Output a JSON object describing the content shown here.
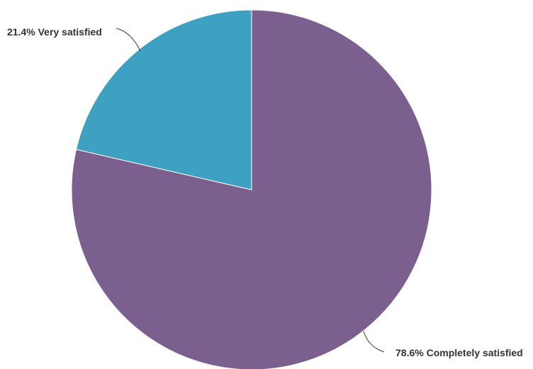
{
  "chart_data": {
    "type": "pie",
    "title": "",
    "start_angle_deg": 0,
    "direction": "clockwise",
    "slices": [
      {
        "label": "Completely satisfied",
        "value": 78.6,
        "display": "78.6% Completely satisfied",
        "color": "#7b5f8f"
      },
      {
        "label": "Very satisfied",
        "value": 21.4,
        "display": "21.4% Very satisfied",
        "color": "#3ea1c1"
      }
    ]
  }
}
